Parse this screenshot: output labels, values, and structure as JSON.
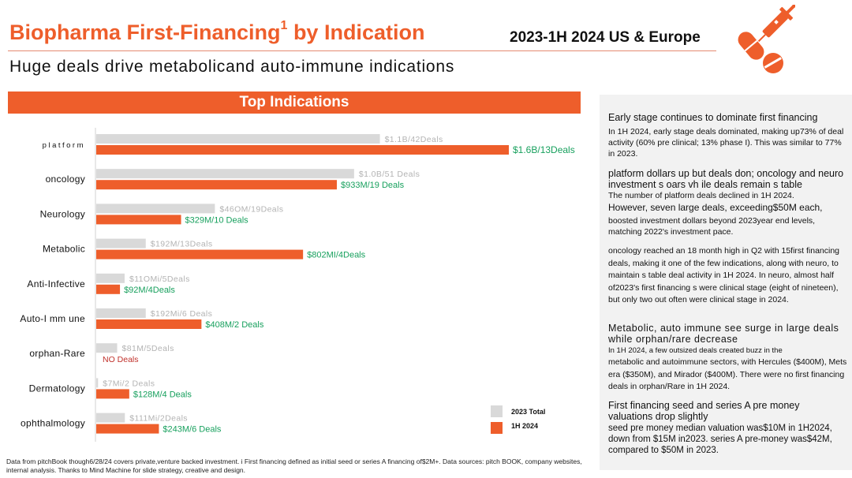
{
  "header": {
    "title": "Biopharma First-Financing",
    "title_sup": "1",
    "title_suffix": " by Indication",
    "period": "2023-1H 2024 US & Europe",
    "subtitle": "Huge deals drive metabolicand auto-immune indications"
  },
  "colors": {
    "accent": "#ee5e2b",
    "bar2023": "#d9d9d9",
    "bar2024": "#ee5e2b",
    "label2024": "#17a05d",
    "noDeals": "#c0302a",
    "label2023": "#b3b3b3"
  },
  "chart_data": {
    "type": "bar",
    "orientation": "horizontal",
    "title": "Top Indications",
    "xlabel": "",
    "ylabel": "",
    "units": "$M invested",
    "xlim": [
      0,
      1600
    ],
    "categories": [
      "platform",
      "oncology",
      "Neurology",
      "Metabolic",
      "Anti-Infective",
      "Auto-I mm une",
      "orphan-Rare",
      "Dermatology",
      "ophthalmology"
    ],
    "series": [
      {
        "name": "2023 Total",
        "values": [
          1100,
          1000,
          460,
          192,
          110,
          192,
          81,
          7,
          111
        ],
        "labels": [
          "$1.1B/42Deals",
          "$1.0B/51 Deals",
          "$46OM/19Deals",
          "$192M/13Deals",
          "$11OMi/5Deals",
          "$192Mi/6 Deals",
          "$81M/5Deals",
          "$7Mi/2 Deals",
          "$111Mi/2Deals"
        ]
      },
      {
        "name": "1H 2024",
        "values": [
          1600,
          933,
          329,
          802,
          92,
          408,
          0,
          128,
          243
        ],
        "labels": [
          "$1.6B/13Deals",
          "$933M/19 Deals",
          "$329M/10 Deals",
          "$802MI/4Deals",
          "$92M/4Deals",
          "$408M/2 Deals",
          "NO Deals",
          "$128M/4 Deals",
          "$243M/6 Deals"
        ]
      }
    ],
    "legend": {
      "position": "bottom-right",
      "entries": [
        "2023 Total",
        "1H 2024"
      ]
    }
  },
  "panel": {
    "s1_head": "Early stage continues to dominate first financing",
    "s1_body": "In 1H 2024, early stage deals dominated, making up73% of deal activity (60% pre clinical; 13% phase I). This was similar to 77% in 2023.",
    "s2_head": "platform dollars up but deals don; oncology and neuro investment s oars vh ile deals remain s table",
    "s2_body1": "The number of platform deals declined in 1H 2024.",
    "s2_body2": "However, seven large deals, exceeding$50M each,",
    "s2_body3": "boosted investment dollars beyond 2023year end levels, matching 2022's investment pace.",
    "s3_body": "oncology reached an 18 month high in Q2 with 15first financing deals, making it one of the few indications, along with neuro, to maintain s table deal activity in 1H 2024. In neuro, almost half of2023's first financing s were clinical stage (eight of nineteen), but only two out often were clinical stage in 2024.",
    "s4_head": "Metabolic, auto immune see surge in large deals while orphan/rare decrease",
    "s4_body1": "In 1H 2024, a few outsized deals created buzz in the",
    "s4_body2": "metabolic and autoimmune sectors, with Hercules ($400M), Mets era ($350M), and Mirador ($400M). There were no first financing deals in orphan/Rare in 1H 2024.",
    "s5_head": "First financing seed and series A pre money valuations drop slightly",
    "s5_body": "seed pre money median valuation was$10M in 1H2024, down from $15M in2023. series A pre-money was$42M, compared to $50M in 2023."
  },
  "footnote": "Data from pitchBook though6/28/24 covers private,venture backed investment. i First financing defined as initial seed or series A financing of$2M+. Data sources: pitch BOOK, company websites, internal analysis. Thanks to Mind Machine for slide strategy, creative and design."
}
